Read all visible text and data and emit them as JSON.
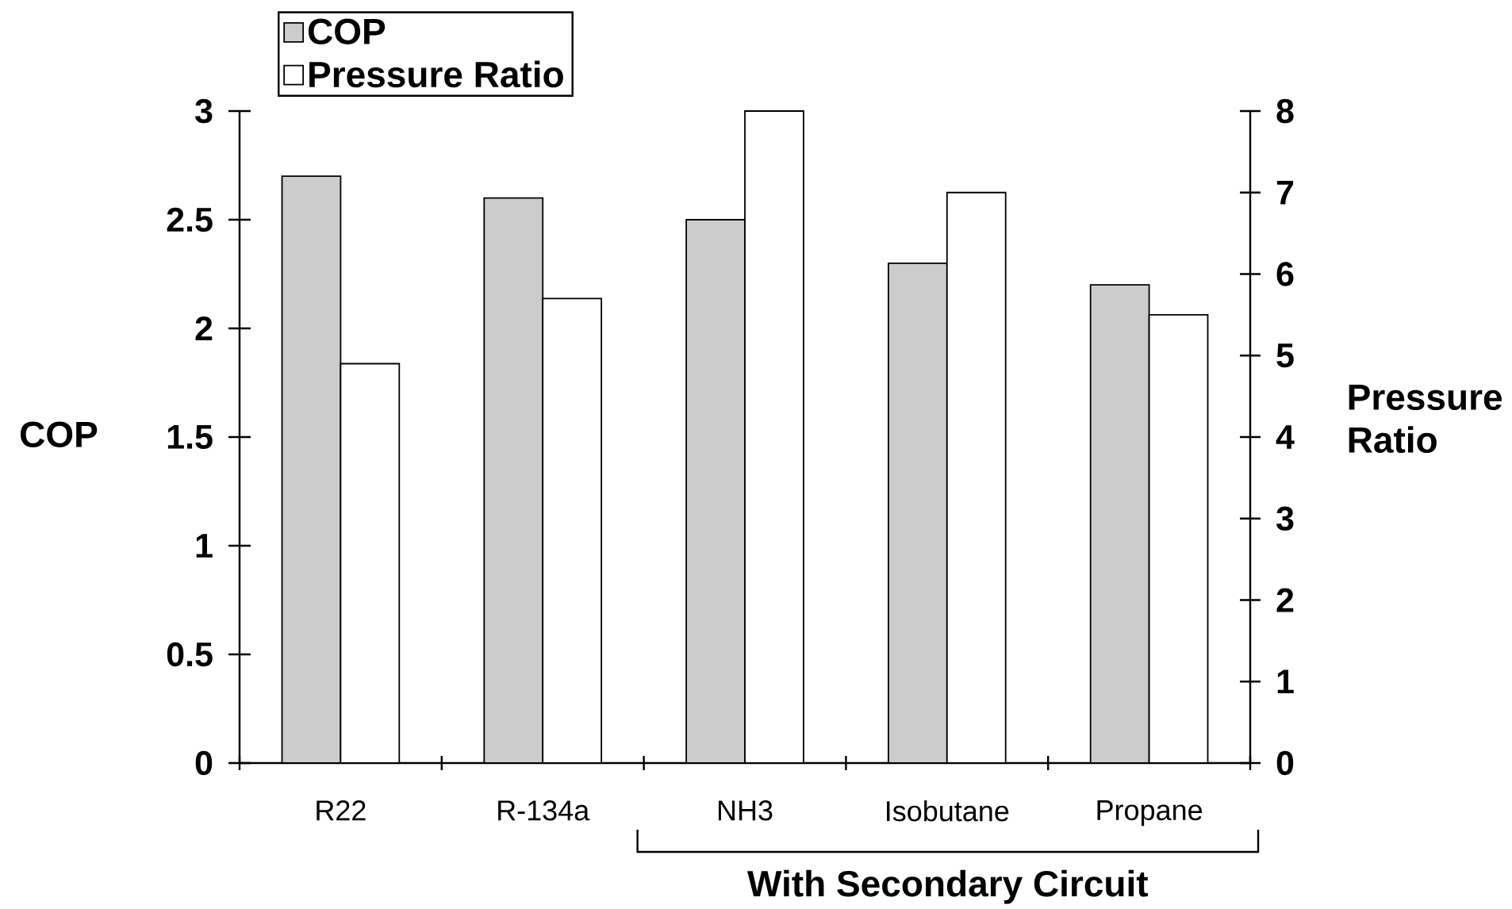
{
  "chart_data": {
    "type": "bar",
    "categories": [
      "R22",
      "R-134a",
      "NH3",
      "Isobutane",
      "Propane"
    ],
    "series": [
      {
        "name": "COP",
        "color": "#cccccc",
        "values": [
          2.7,
          2.6,
          2.5,
          2.3,
          2.2
        ],
        "axis": "y"
      },
      {
        "name": "Pressure Ratio",
        "color": "#ffffff",
        "values": [
          4.9,
          5.7,
          8,
          7,
          5.5
        ],
        "axis": "y2"
      }
    ],
    "ylabel": "COP",
    "y2label": "Pressure Ratio",
    "ylim": [
      0,
      3
    ],
    "yticks": [
      0,
      0.5,
      1,
      1.5,
      2,
      2.5,
      3
    ],
    "y2lim": [
      0,
      8
    ],
    "y2ticks": [
      0,
      1,
      2,
      3,
      4,
      5,
      6,
      7,
      8
    ],
    "legend": "top left",
    "annotations": [
      "With Secondary Circuit"
    ]
  }
}
